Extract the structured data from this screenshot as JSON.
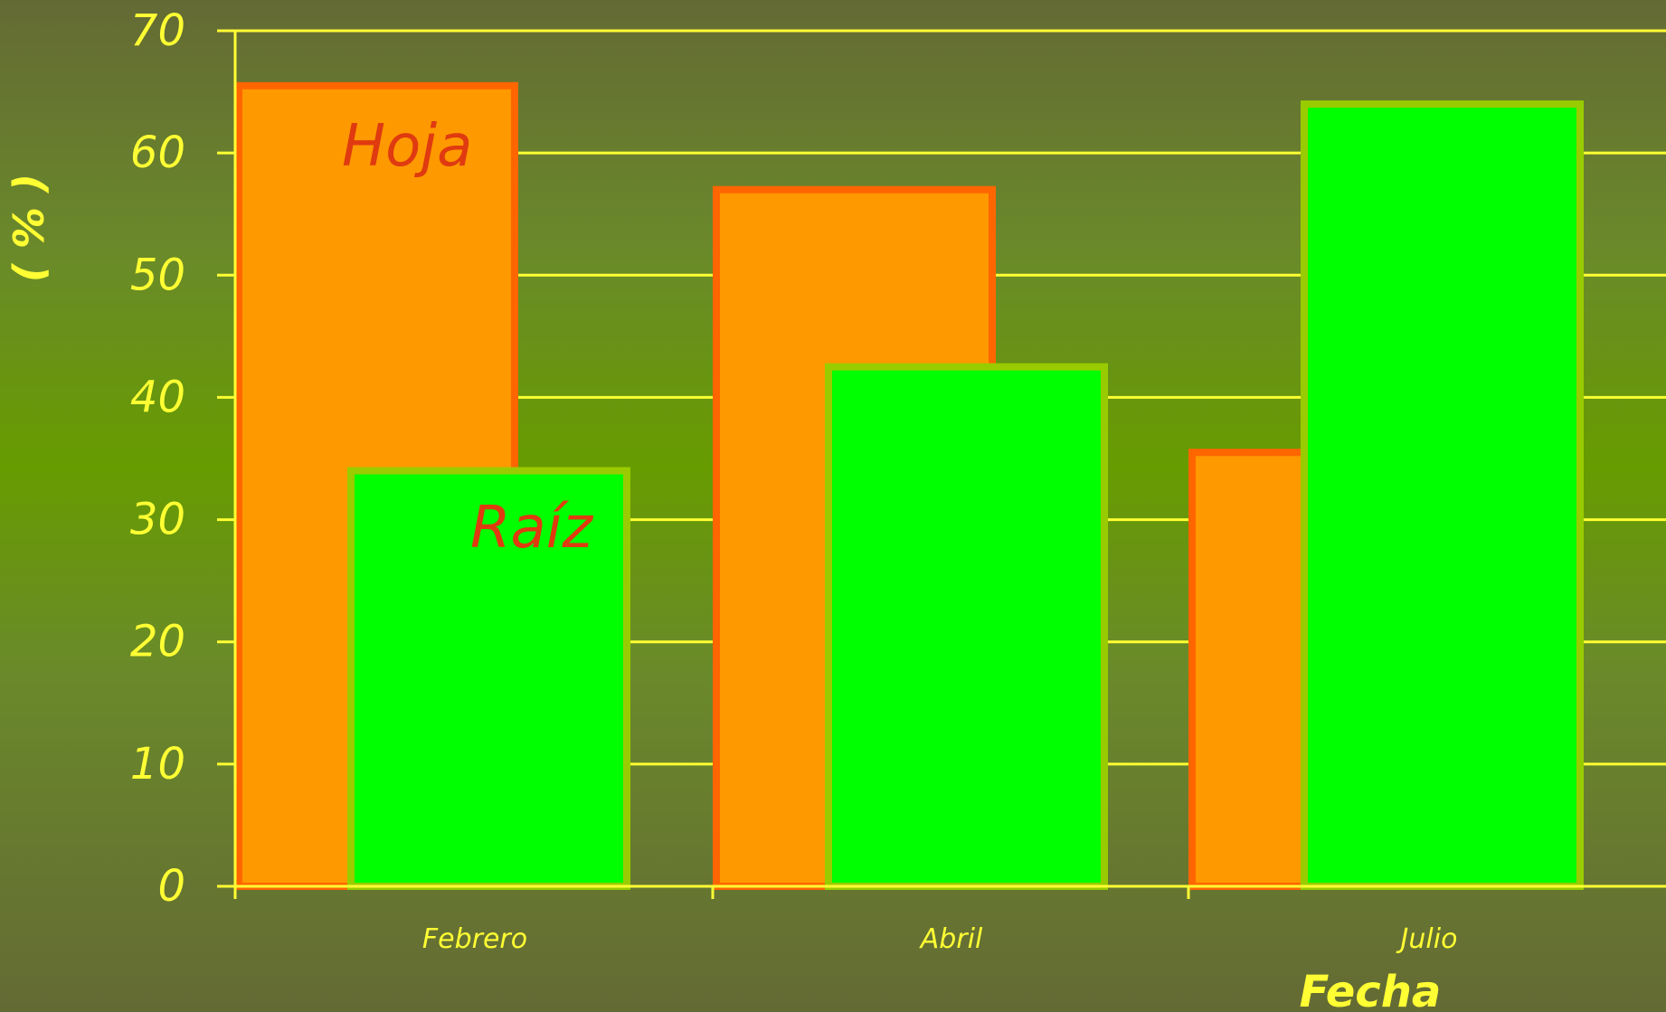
{
  "chart_data": {
    "type": "bar",
    "categories": [
      "Febrero",
      "Abril",
      "Julio"
    ],
    "series": [
      {
        "name": "Hoja",
        "values": [
          65.5,
          57,
          35.5
        ],
        "fill": "#ff9900",
        "stroke": "#ff6600"
      },
      {
        "name": "Raíz",
        "values": [
          34,
          42.5,
          64
        ],
        "fill": "#00ff00",
        "stroke": "#99cc00"
      }
    ],
    "xlabel": "Fecha",
    "ylabel": "( % )",
    "ylim": [
      0,
      70
    ],
    "yticks": [
      0,
      10,
      20,
      30,
      40,
      50,
      60,
      70
    ],
    "grid": true,
    "colors": {
      "axis": "#ffff33",
      "grid": "#ffff33",
      "label_text": "#e03a10"
    }
  }
}
